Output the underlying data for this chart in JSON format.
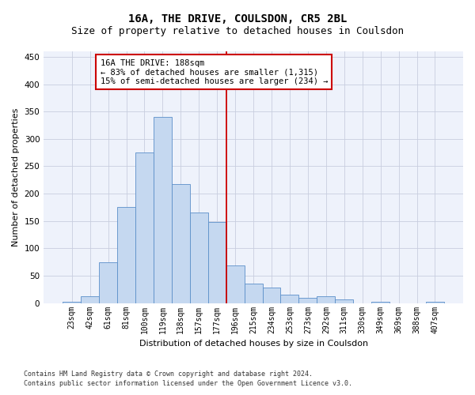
{
  "title": "16A, THE DRIVE, COULSDON, CR5 2BL",
  "subtitle": "Size of property relative to detached houses in Coulsdon",
  "xlabel": "Distribution of detached houses by size in Coulsdon",
  "ylabel": "Number of detached properties",
  "categories": [
    "23sqm",
    "42sqm",
    "61sqm",
    "81sqm",
    "100sqm",
    "119sqm",
    "138sqm",
    "157sqm",
    "177sqm",
    "196sqm",
    "215sqm",
    "234sqm",
    "253sqm",
    "273sqm",
    "292sqm",
    "311sqm",
    "330sqm",
    "349sqm",
    "369sqm",
    "388sqm",
    "407sqm"
  ],
  "values": [
    3,
    12,
    75,
    175,
    275,
    340,
    218,
    165,
    148,
    69,
    35,
    29,
    16,
    10,
    13,
    7,
    0,
    2,
    0,
    0,
    2
  ],
  "bar_color": "#c5d8f0",
  "bar_edge_color": "#5b8fc9",
  "vline_x": 9,
  "vline_color": "#cc0000",
  "annotation_line1": "16A THE DRIVE: 188sqm",
  "annotation_line2": "← 83% of detached houses are smaller (1,315)",
  "annotation_line3": "15% of semi-detached houses are larger (234) →",
  "annotation_box_color": "#cc0000",
  "footer_line1": "Contains HM Land Registry data © Crown copyright and database right 2024.",
  "footer_line2": "Contains public sector information licensed under the Open Government Licence v3.0.",
  "ylim": [
    0,
    460
  ],
  "yticks": [
    0,
    50,
    100,
    150,
    200,
    250,
    300,
    350,
    400,
    450
  ],
  "background_color": "#eef2fb",
  "grid_color": "#c8cedf",
  "title_fontsize": 10,
  "subtitle_fontsize": 9,
  "axis_label_fontsize": 8,
  "tick_fontsize": 7,
  "annotation_fontsize": 7.5,
  "footer_fontsize": 6
}
